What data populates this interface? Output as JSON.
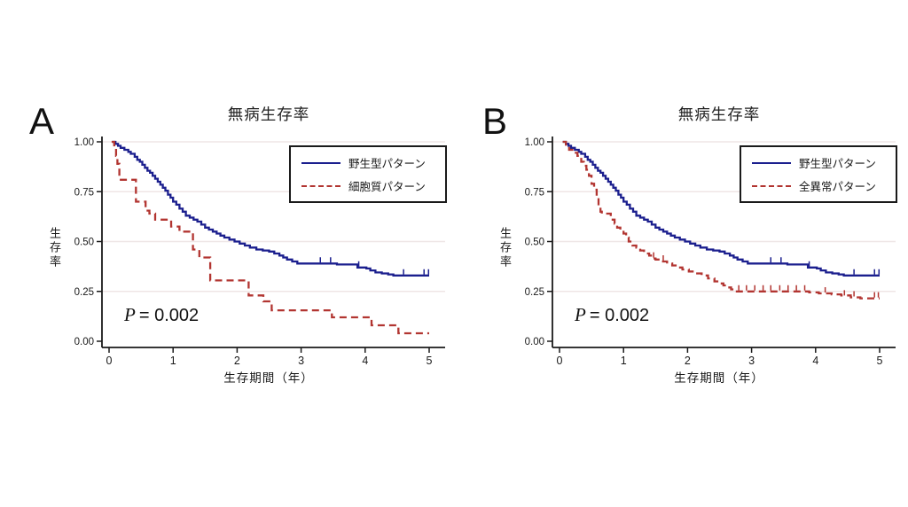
{
  "figure": {
    "background": "#ffffff",
    "panel_labels": {
      "a": "A",
      "b": "B"
    }
  },
  "colors": {
    "wild_type_line": "#1b1f8e",
    "aberrant_line": "#b23531",
    "grid_line": "#efe6e6",
    "axis": "#1a1a1a"
  },
  "chart_data": [
    {
      "type": "line",
      "subtype": "kaplan-meier-step",
      "panel": "A",
      "title": "無病生存率",
      "xlabel": "生存期間（年）",
      "ylabel": "生存率",
      "xlim": [
        0,
        5
      ],
      "ylim": [
        0,
        1
      ],
      "xticks": [
        0,
        1,
        2,
        3,
        4,
        5
      ],
      "ytick_values": [
        0,
        0.25,
        0.5,
        0.75,
        1
      ],
      "ytick_labels": [
        "0.00",
        "0.25",
        "0.50",
        "0.75",
        "1.00"
      ],
      "grid": true,
      "legend_position": "top-right",
      "annotation": {
        "italic_part": "P",
        "text_part": "= 0.002"
      },
      "series": [
        {
          "name": "野生型パターン",
          "color": "#1b1f8e",
          "line_style": "solid",
          "steps": [
            [
              0.05,
              1.0
            ],
            [
              0.1,
              0.99
            ],
            [
              0.14,
              0.98
            ],
            [
              0.18,
              0.97
            ],
            [
              0.24,
              0.96
            ],
            [
              0.3,
              0.95
            ],
            [
              0.34,
              0.94
            ],
            [
              0.4,
              0.925
            ],
            [
              0.44,
              0.91
            ],
            [
              0.48,
              0.9
            ],
            [
              0.52,
              0.885
            ],
            [
              0.56,
              0.87
            ],
            [
              0.6,
              0.855
            ],
            [
              0.64,
              0.845
            ],
            [
              0.68,
              0.83
            ],
            [
              0.72,
              0.815
            ],
            [
              0.76,
              0.8
            ],
            [
              0.8,
              0.785
            ],
            [
              0.84,
              0.77
            ],
            [
              0.88,
              0.755
            ],
            [
              0.92,
              0.735
            ],
            [
              0.96,
              0.72
            ],
            [
              1.0,
              0.7
            ],
            [
              1.05,
              0.685
            ],
            [
              1.1,
              0.665
            ],
            [
              1.15,
              0.65
            ],
            [
              1.2,
              0.63
            ],
            [
              1.26,
              0.62
            ],
            [
              1.32,
              0.61
            ],
            [
              1.38,
              0.6
            ],
            [
              1.44,
              0.585
            ],
            [
              1.5,
              0.57
            ],
            [
              1.56,
              0.56
            ],
            [
              1.62,
              0.55
            ],
            [
              1.68,
              0.54
            ],
            [
              1.74,
              0.53
            ],
            [
              1.8,
              0.52
            ],
            [
              1.88,
              0.51
            ],
            [
              1.96,
              0.5
            ],
            [
              2.04,
              0.49
            ],
            [
              2.12,
              0.48
            ],
            [
              2.2,
              0.47
            ],
            [
              2.3,
              0.46
            ],
            [
              2.4,
              0.455
            ],
            [
              2.5,
              0.45
            ],
            [
              2.58,
              0.44
            ],
            [
              2.66,
              0.43
            ],
            [
              2.72,
              0.42
            ],
            [
              2.78,
              0.41
            ],
            [
              2.86,
              0.4
            ],
            [
              2.94,
              0.39
            ],
            [
              3.56,
              0.385
            ],
            [
              3.88,
              0.37
            ],
            [
              4.02,
              0.365
            ],
            [
              4.08,
              0.355
            ],
            [
              4.16,
              0.345
            ],
            [
              4.26,
              0.34
            ],
            [
              4.36,
              0.335
            ],
            [
              4.44,
              0.33
            ],
            [
              5.0,
              0.33
            ]
          ],
          "censor_ticks": [
            [
              3.3,
              0.39
            ],
            [
              3.46,
              0.39
            ],
            [
              3.9,
              0.37
            ],
            [
              4.6,
              0.33
            ],
            [
              4.92,
              0.33
            ],
            [
              4.99,
              0.33
            ]
          ]
        },
        {
          "name": "細胞質パターン",
          "color": "#b23531",
          "line_style": "dashed",
          "steps": [
            [
              0.04,
              1.0
            ],
            [
              0.08,
              0.97
            ],
            [
              0.11,
              0.93
            ],
            [
              0.13,
              0.89
            ],
            [
              0.16,
              0.81
            ],
            [
              0.42,
              0.7
            ],
            [
              0.57,
              0.655
            ],
            [
              0.63,
              0.64
            ],
            [
              0.72,
              0.61
            ],
            [
              0.97,
              0.575
            ],
            [
              1.1,
              0.55
            ],
            [
              1.31,
              0.46
            ],
            [
              1.41,
              0.42
            ],
            [
              1.58,
              0.305
            ],
            [
              2.18,
              0.23
            ],
            [
              2.41,
              0.2
            ],
            [
              2.54,
              0.155
            ],
            [
              3.48,
              0.12
            ],
            [
              4.1,
              0.08
            ],
            [
              4.52,
              0.04
            ],
            [
              5.0,
              0.04
            ]
          ],
          "censor_ticks": []
        }
      ]
    },
    {
      "type": "line",
      "subtype": "kaplan-meier-step",
      "panel": "B",
      "title": "無病生存率",
      "xlabel": "生存期間（年）",
      "ylabel": "生存率",
      "xlim": [
        0,
        5
      ],
      "ylim": [
        0,
        1
      ],
      "xticks": [
        0,
        1,
        2,
        3,
        4,
        5
      ],
      "ytick_values": [
        0,
        0.25,
        0.5,
        0.75,
        1
      ],
      "ytick_labels": [
        "0.00",
        "0.25",
        "0.50",
        "0.75",
        "1.00"
      ],
      "grid": true,
      "legend_position": "top-right",
      "annotation": {
        "italic_part": "P",
        "text_part": "= 0.002"
      },
      "series": [
        {
          "name": "野生型パターン",
          "color": "#1b1f8e",
          "line_style": "solid",
          "steps": [
            [
              0.05,
              1.0
            ],
            [
              0.1,
              0.99
            ],
            [
              0.14,
              0.98
            ],
            [
              0.18,
              0.97
            ],
            [
              0.24,
              0.96
            ],
            [
              0.3,
              0.95
            ],
            [
              0.34,
              0.94
            ],
            [
              0.4,
              0.925
            ],
            [
              0.44,
              0.91
            ],
            [
              0.48,
              0.9
            ],
            [
              0.52,
              0.885
            ],
            [
              0.56,
              0.87
            ],
            [
              0.6,
              0.855
            ],
            [
              0.64,
              0.845
            ],
            [
              0.68,
              0.83
            ],
            [
              0.72,
              0.815
            ],
            [
              0.76,
              0.8
            ],
            [
              0.8,
              0.785
            ],
            [
              0.84,
              0.77
            ],
            [
              0.88,
              0.755
            ],
            [
              0.92,
              0.735
            ],
            [
              0.96,
              0.72
            ],
            [
              1.0,
              0.7
            ],
            [
              1.05,
              0.685
            ],
            [
              1.1,
              0.665
            ],
            [
              1.15,
              0.65
            ],
            [
              1.2,
              0.63
            ],
            [
              1.26,
              0.62
            ],
            [
              1.32,
              0.61
            ],
            [
              1.38,
              0.6
            ],
            [
              1.44,
              0.585
            ],
            [
              1.5,
              0.57
            ],
            [
              1.56,
              0.56
            ],
            [
              1.62,
              0.55
            ],
            [
              1.68,
              0.54
            ],
            [
              1.74,
              0.53
            ],
            [
              1.8,
              0.52
            ],
            [
              1.88,
              0.51
            ],
            [
              1.96,
              0.5
            ],
            [
              2.04,
              0.49
            ],
            [
              2.12,
              0.48
            ],
            [
              2.2,
              0.47
            ],
            [
              2.3,
              0.46
            ],
            [
              2.4,
              0.455
            ],
            [
              2.5,
              0.45
            ],
            [
              2.58,
              0.44
            ],
            [
              2.66,
              0.43
            ],
            [
              2.72,
              0.42
            ],
            [
              2.78,
              0.41
            ],
            [
              2.86,
              0.4
            ],
            [
              2.94,
              0.39
            ],
            [
              3.56,
              0.385
            ],
            [
              3.88,
              0.37
            ],
            [
              4.02,
              0.365
            ],
            [
              4.08,
              0.355
            ],
            [
              4.16,
              0.345
            ],
            [
              4.26,
              0.34
            ],
            [
              4.36,
              0.335
            ],
            [
              4.44,
              0.33
            ],
            [
              5.0,
              0.33
            ]
          ],
          "censor_ticks": [
            [
              3.3,
              0.39
            ],
            [
              3.46,
              0.39
            ],
            [
              3.9,
              0.37
            ],
            [
              4.6,
              0.33
            ],
            [
              4.92,
              0.33
            ],
            [
              4.99,
              0.33
            ]
          ]
        },
        {
          "name": "全異常パターン",
          "color": "#b23531",
          "line_style": "dashed",
          "steps": [
            [
              0.05,
              1.0
            ],
            [
              0.1,
              0.98
            ],
            [
              0.15,
              0.96
            ],
            [
              0.22,
              0.945
            ],
            [
              0.28,
              0.93
            ],
            [
              0.34,
              0.9
            ],
            [
              0.38,
              0.88
            ],
            [
              0.42,
              0.86
            ],
            [
              0.46,
              0.83
            ],
            [
              0.5,
              0.79
            ],
            [
              0.54,
              0.76
            ],
            [
              0.58,
              0.72
            ],
            [
              0.61,
              0.68
            ],
            [
              0.64,
              0.65
            ],
            [
              0.66,
              0.64
            ],
            [
              0.8,
              0.61
            ],
            [
              0.86,
              0.59
            ],
            [
              0.9,
              0.57
            ],
            [
              0.95,
              0.555
            ],
            [
              1.0,
              0.54
            ],
            [
              1.04,
              0.52
            ],
            [
              1.08,
              0.5
            ],
            [
              1.14,
              0.48
            ],
            [
              1.2,
              0.47
            ],
            [
              1.26,
              0.455
            ],
            [
              1.32,
              0.44
            ],
            [
              1.4,
              0.43
            ],
            [
              1.45,
              0.415
            ],
            [
              1.5,
              0.41
            ],
            [
              1.58,
              0.4
            ],
            [
              1.68,
              0.39
            ],
            [
              1.76,
              0.38
            ],
            [
              1.86,
              0.37
            ],
            [
              1.92,
              0.36
            ],
            [
              2.02,
              0.35
            ],
            [
              2.12,
              0.34
            ],
            [
              2.22,
              0.33
            ],
            [
              2.32,
              0.315
            ],
            [
              2.42,
              0.3
            ],
            [
              2.5,
              0.29
            ],
            [
              2.56,
              0.28
            ],
            [
              2.62,
              0.27
            ],
            [
              2.68,
              0.26
            ],
            [
              2.74,
              0.25
            ],
            [
              3.9,
              0.245
            ],
            [
              4.05,
              0.24
            ],
            [
              4.25,
              0.235
            ],
            [
              4.4,
              0.23
            ],
            [
              4.55,
              0.22
            ],
            [
              4.7,
              0.215
            ],
            [
              5.0,
              0.215
            ]
          ],
          "censor_ticks": [
            [
              1.47,
              0.415
            ],
            [
              1.62,
              0.4
            ],
            [
              2.8,
              0.25
            ],
            [
              2.92,
              0.25
            ],
            [
              3.05,
              0.25
            ],
            [
              3.18,
              0.25
            ],
            [
              3.3,
              0.25
            ],
            [
              3.44,
              0.25
            ],
            [
              3.57,
              0.25
            ],
            [
              3.7,
              0.25
            ],
            [
              3.83,
              0.25
            ],
            [
              4.15,
              0.24
            ],
            [
              4.45,
              0.225
            ],
            [
              4.6,
              0.22
            ],
            [
              4.92,
              0.215
            ],
            [
              4.98,
              0.215
            ]
          ]
        }
      ]
    }
  ]
}
